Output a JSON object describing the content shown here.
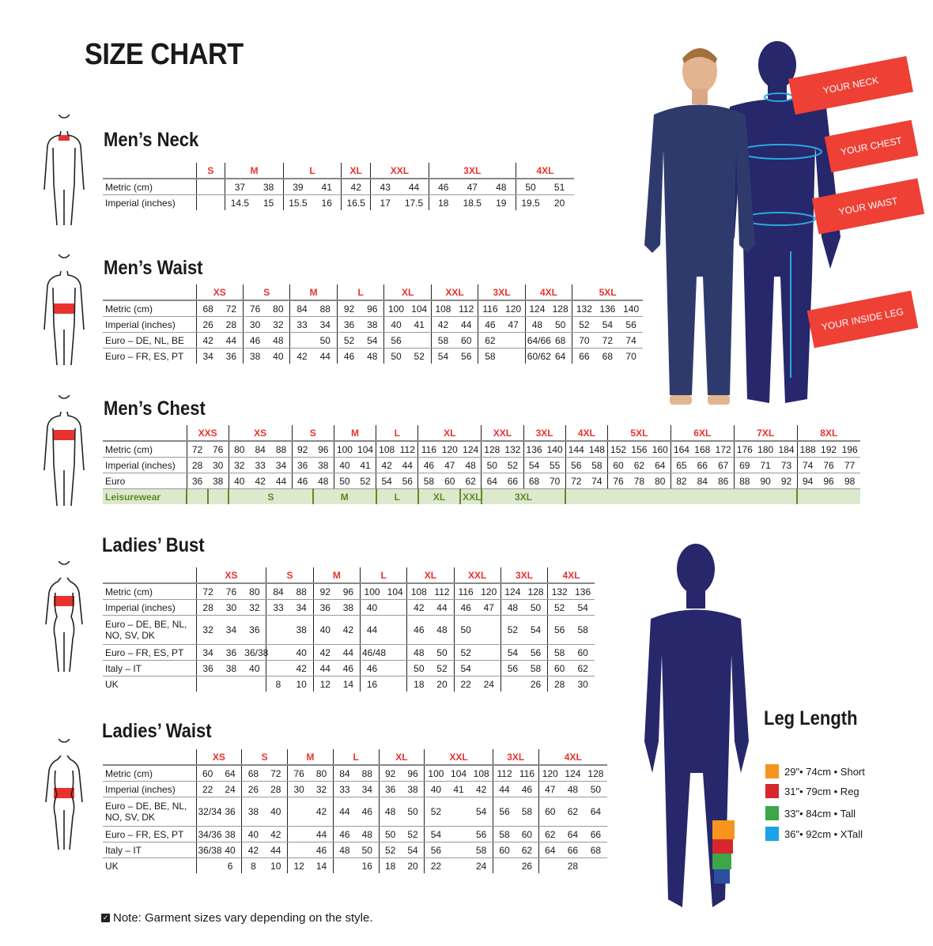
{
  "title": "SIZE CHART",
  "colors": {
    "size_label": "#e8322f",
    "leisurewear": "#5b8c26",
    "leisurewear_bg": "#dde8cd",
    "tag": "#ee4035",
    "silhouette": "#27276b",
    "arrow": "#29a8e0"
  },
  "measure_tags": [
    "YOUR NECK",
    "YOUR CHEST",
    "YOUR WAIST",
    "YOUR INSIDE LEG"
  ],
  "tables": [
    {
      "title": "Men’s Neck",
      "sizes": [
        {
          "label": "S",
          "span": 1
        },
        {
          "label": "M",
          "span": 2
        },
        {
          "label": "L",
          "span": 2
        },
        {
          "label": "XL",
          "span": 1
        },
        {
          "label": "XXL",
          "span": 2
        },
        {
          "label": "3XL",
          "span": 3
        },
        {
          "label": "4XL",
          "span": 2
        }
      ],
      "rows": [
        {
          "label": "Metric (cm)",
          "values": [
            "",
            "37",
            "38",
            "39",
            "41",
            "42",
            "43",
            "44",
            "46",
            "47",
            "48",
            "50",
            "51"
          ]
        },
        {
          "label": "Imperial (inches)",
          "values": [
            "",
            "14.5",
            "15",
            "15.5",
            "16",
            "16.5",
            "17",
            "17.5",
            "18",
            "18.5",
            "19",
            "19.5",
            "20"
          ]
        }
      ]
    },
    {
      "title": "Men’s Waist",
      "sizes": [
        {
          "label": "XS",
          "span": 2
        },
        {
          "label": "S",
          "span": 2
        },
        {
          "label": "M",
          "span": 2
        },
        {
          "label": "L",
          "span": 2
        },
        {
          "label": "XL",
          "span": 2
        },
        {
          "label": "XXL",
          "span": 2
        },
        {
          "label": "3XL",
          "span": 2
        },
        {
          "label": "4XL",
          "span": 2
        },
        {
          "label": "5XL",
          "span": 3
        }
      ],
      "rows": [
        {
          "label": "Metric (cm)",
          "values": [
            "68",
            "72",
            "76",
            "80",
            "84",
            "88",
            "92",
            "96",
            "100",
            "104",
            "108",
            "112",
            "116",
            "120",
            "124",
            "128",
            "132",
            "136",
            "140"
          ]
        },
        {
          "label": "Imperial (inches)",
          "values": [
            "26",
            "28",
            "30",
            "32",
            "33",
            "34",
            "36",
            "38",
            "40",
            "41",
            "42",
            "44",
            "46",
            "47",
            "48",
            "50",
            "52",
            "54",
            "56"
          ]
        },
        {
          "label": "Euro – DE, NL, BE",
          "values": [
            "42",
            "44",
            "46",
            "48",
            "",
            "50",
            "52",
            "54",
            "56",
            "",
            "58",
            "60",
            "62",
            "",
            "64/66",
            "68",
            "70",
            "72",
            "74"
          ]
        },
        {
          "label": "Euro – FR, ES, PT",
          "values": [
            "34",
            "36",
            "38",
            "40",
            "42",
            "44",
            "46",
            "48",
            "50",
            "52",
            "54",
            "56",
            "58",
            "",
            "60/62",
            "64",
            "66",
            "68",
            "70"
          ]
        }
      ]
    },
    {
      "title": "Men’s Chest",
      "sizes": [
        {
          "label": "XXS",
          "span": 2
        },
        {
          "label": "XS",
          "span": 3
        },
        {
          "label": "S",
          "span": 2
        },
        {
          "label": "M",
          "span": 2
        },
        {
          "label": "L",
          "span": 2
        },
        {
          "label": "XL",
          "span": 3
        },
        {
          "label": "XXL",
          "span": 2
        },
        {
          "label": "3XL",
          "span": 2
        },
        {
          "label": "4XL",
          "span": 2
        },
        {
          "label": "5XL",
          "span": 3
        },
        {
          "label": "6XL",
          "span": 3
        },
        {
          "label": "7XL",
          "span": 3
        },
        {
          "label": "8XL",
          "span": 3
        }
      ],
      "rows": [
        {
          "label": "Metric (cm)",
          "values": [
            "72",
            "76",
            "80",
            "84",
            "88",
            "92",
            "96",
            "100",
            "104",
            "108",
            "112",
            "116",
            "120",
            "124",
            "128",
            "132",
            "136",
            "140",
            "144",
            "148",
            "152",
            "156",
            "160",
            "164",
            "168",
            "172",
            "176",
            "180",
            "184",
            "188",
            "192",
            "196"
          ]
        },
        {
          "label": "Imperial (inches)",
          "values": [
            "28",
            "30",
            "32",
            "33",
            "34",
            "36",
            "38",
            "40",
            "41",
            "42",
            "44",
            "46",
            "47",
            "48",
            "50",
            "52",
            "54",
            "55",
            "56",
            "58",
            "60",
            "62",
            "64",
            "65",
            "66",
            "67",
            "69",
            "71",
            "73",
            "74",
            "76",
            "77"
          ]
        },
        {
          "label": "Euro",
          "values": [
            "36",
            "38",
            "40",
            "42",
            "44",
            "46",
            "48",
            "50",
            "52",
            "54",
            "56",
            "58",
            "60",
            "62",
            "64",
            "66",
            "68",
            "70",
            "72",
            "74",
            "76",
            "78",
            "80",
            "82",
            "84",
            "86",
            "88",
            "90",
            "92",
            "94",
            "96",
            "98"
          ]
        }
      ],
      "leisurewear": {
        "label": "Leisurewear",
        "cells": [
          {
            "label": "",
            "span": 1
          },
          {
            "label": "",
            "span": 1
          },
          {
            "label": "S",
            "span": 4
          },
          {
            "label": "M",
            "span": 3
          },
          {
            "label": "L",
            "span": 2
          },
          {
            "label": "XL",
            "span": 2
          },
          {
            "label": "XXL",
            "span": 1
          },
          {
            "label": "3XL",
            "span": 4
          },
          {
            "label": "",
            "span": 11
          },
          {
            "label": "",
            "span": 3
          }
        ]
      }
    },
    {
      "title": "Ladies’ Bust",
      "sizes": [
        {
          "label": "XS",
          "span": 3
        },
        {
          "label": "S",
          "span": 2
        },
        {
          "label": "M",
          "span": 2
        },
        {
          "label": "L",
          "span": 2
        },
        {
          "label": "XL",
          "span": 2
        },
        {
          "label": "XXL",
          "span": 2
        },
        {
          "label": "3XL",
          "span": 2
        },
        {
          "label": "4XL",
          "span": 2
        }
      ],
      "rows": [
        {
          "label": "Metric (cm)",
          "values": [
            "72",
            "76",
            "80",
            "84",
            "88",
            "92",
            "96",
            "100",
            "104",
            "108",
            "112",
            "116",
            "120",
            "124",
            "128",
            "132",
            "136"
          ]
        },
        {
          "label": "Imperial (inches)",
          "values": [
            "28",
            "30",
            "32",
            "33",
            "34",
            "36",
            "38",
            "40",
            "",
            "42",
            "44",
            "46",
            "47",
            "48",
            "50",
            "52",
            "54"
          ]
        },
        {
          "label": "Euro –  DE, BE, NL, NO, SV, DK",
          "values": [
            "32",
            "34",
            "36",
            "",
            "38",
            "40",
            "42",
            "44",
            "",
            "46",
            "48",
            "50",
            "",
            "52",
            "54",
            "56",
            "58"
          ],
          "tall": true
        },
        {
          "label": "Euro – FR, ES, PT",
          "values": [
            "34",
            "36",
            "36/38",
            "",
            "40",
            "42",
            "44",
            "46/48",
            "",
            "48",
            "50",
            "52",
            "",
            "54",
            "56",
            "58",
            "60"
          ]
        },
        {
          "label": "Italy – IT",
          "values": [
            "36",
            "38",
            "40",
            "",
            "42",
            "44",
            "46",
            "46",
            "",
            "50",
            "52",
            "54",
            "",
            "56",
            "58",
            "60",
            "62"
          ]
        },
        {
          "label": "UK",
          "values": [
            "",
            "",
            "",
            "8",
            "10",
            "12",
            "14",
            "16",
            "",
            "18",
            "20",
            "22",
            "24",
            "",
            "26",
            "28",
            "30"
          ]
        }
      ]
    },
    {
      "title": "Ladies’ Waist",
      "sizes": [
        {
          "label": "XS",
          "span": 2
        },
        {
          "label": "S",
          "span": 2
        },
        {
          "label": "M",
          "span": 2
        },
        {
          "label": "L",
          "span": 2
        },
        {
          "label": "XL",
          "span": 2
        },
        {
          "label": "XXL",
          "span": 3
        },
        {
          "label": "3XL",
          "span": 2
        },
        {
          "label": "4XL",
          "span": 3
        }
      ],
      "rows": [
        {
          "label": "Metric (cm)",
          "values": [
            "60",
            "64",
            "68",
            "72",
            "76",
            "80",
            "84",
            "88",
            "92",
            "96",
            "100",
            "104",
            "108",
            "112",
            "116",
            "120",
            "124",
            "128"
          ]
        },
        {
          "label": "Imperial (inches)",
          "values": [
            "22",
            "24",
            "26",
            "28",
            "30",
            "32",
            "33",
            "34",
            "36",
            "38",
            "40",
            "41",
            "42",
            "44",
            "46",
            "47",
            "48",
            "50"
          ]
        },
        {
          "label": "Euro – DE, BE, NL, NO, SV, DK",
          "values": [
            "32/34",
            "36",
            "38",
            "40",
            "",
            "42",
            "44",
            "46",
            "48",
            "50",
            "52",
            "",
            "54",
            "56",
            "58",
            "60",
            "62",
            "64"
          ],
          "tall": true
        },
        {
          "label": "Euro – FR, ES, PT",
          "values": [
            "34/36",
            "38",
            "40",
            "42",
            "",
            "44",
            "46",
            "48",
            "50",
            "52",
            "54",
            "",
            "56",
            "58",
            "60",
            "62",
            "64",
            "66"
          ]
        },
        {
          "label": "Italy – IT",
          "values": [
            "36/38",
            "40",
            "42",
            "44",
            "",
            "46",
            "48",
            "50",
            "52",
            "54",
            "56",
            "",
            "58",
            "60",
            "62",
            "64",
            "66",
            "68"
          ]
        },
        {
          "label": "UK",
          "values": [
            "",
            "6",
            "8",
            "10",
            "12",
            "14",
            "",
            "16",
            "18",
            "20",
            "22",
            "",
            "24",
            "",
            "26",
            "",
            "28",
            ""
          ]
        }
      ]
    }
  ],
  "leg_length": {
    "title": "Leg Length",
    "items": [
      {
        "label": "29\"• 74cm • Short",
        "color": "#f7941d"
      },
      {
        "label": "31\"• 79cm • Reg",
        "color": "#d7262e"
      },
      {
        "label": "33\"• 84cm • Tall",
        "color": "#3ca648"
      },
      {
        "label": "36\"• 92cm • XTall",
        "color": "#1aa3e8"
      }
    ]
  },
  "note": "Note: Garment sizes vary depending on the style."
}
